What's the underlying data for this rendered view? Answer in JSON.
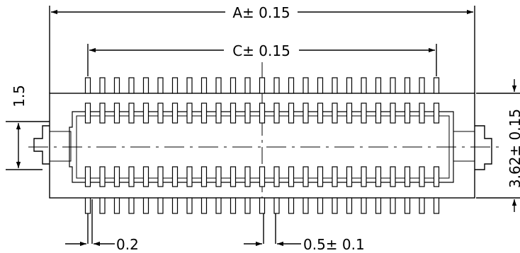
{
  "drawing": {
    "dimensions": {
      "overall_length": "A± 0.15",
      "pin_span": "C± 0.15",
      "height_offset": "1.5",
      "body_height": "3.62± 0.15",
      "pin_width": "0.2",
      "pin_pitch": "0.5± 0.1"
    },
    "pins_per_row": 25,
    "line_color": "#000000",
    "background": "#ffffff"
  }
}
